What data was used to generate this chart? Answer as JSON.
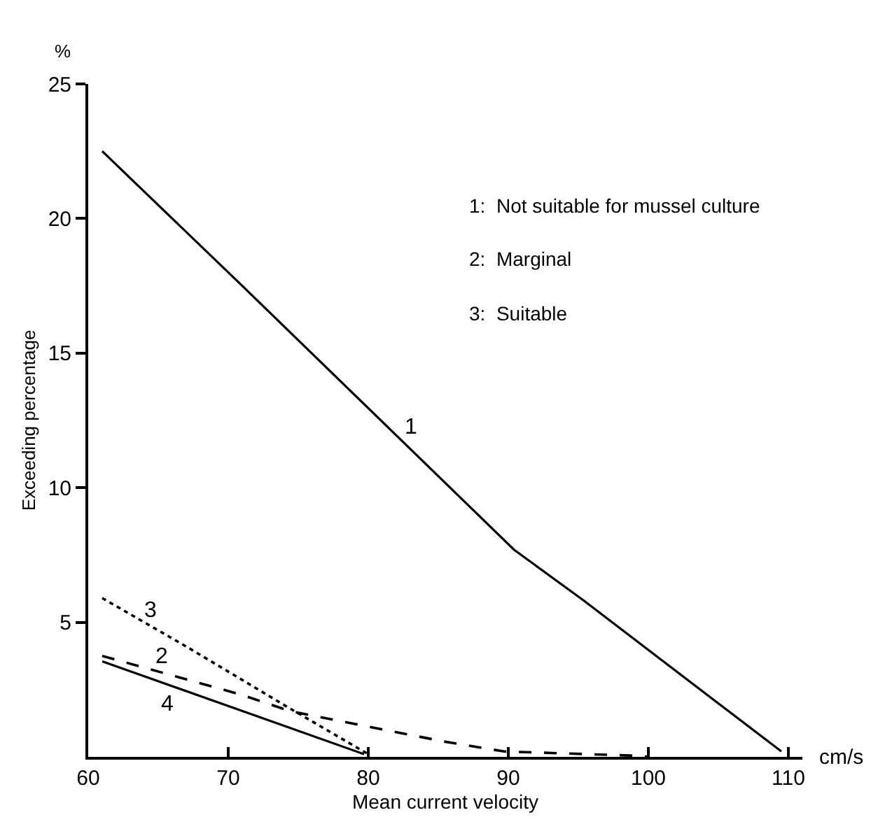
{
  "chart_data": {
    "type": "line",
    "xlabel": "Mean current velocity",
    "ylabel": "Exceeding percentage",
    "xlim": [
      60,
      111
    ],
    "xticks": [
      60,
      70,
      80,
      90,
      100,
      110
    ],
    "ylim": [
      0,
      25
    ],
    "yticks": [
      5,
      10,
      15,
      20,
      25
    ],
    "legend": false,
    "marker": "none",
    "series": [
      {
        "name": "1",
        "color": "#000000",
        "line_style": "solid",
        "x": [
          61,
          71,
          90.4,
          95.4,
          109.5
        ],
        "values": [
          22.5,
          17.5,
          7.7,
          5.8,
          0.2
        ]
      },
      {
        "name": "2",
        "color": "#000000",
        "line_style": "dashed",
        "x": [
          61,
          71,
          74.4,
          85.4,
          89.7,
          98.7,
          100
        ],
        "values": [
          3.75,
          2.3,
          1.7,
          0.57,
          0.2,
          0.05,
          0
        ]
      },
      {
        "name": "3",
        "color": "#000000",
        "line_style": "dotted",
        "x": [
          61,
          67,
          74.4,
          80
        ],
        "values": [
          5.9,
          4.1,
          1.8,
          0.1
        ]
      },
      {
        "name": "4",
        "color": "#000000",
        "line_style": "solid",
        "x": [
          61,
          79.7
        ],
        "values": [
          3.55,
          0.1
        ]
      }
    ],
    "annotations": [
      "%",
      "cm/s",
      "1:  Not suitable for mussel culture",
      "2:  Marginal",
      "3:  Suitable"
    ]
  }
}
